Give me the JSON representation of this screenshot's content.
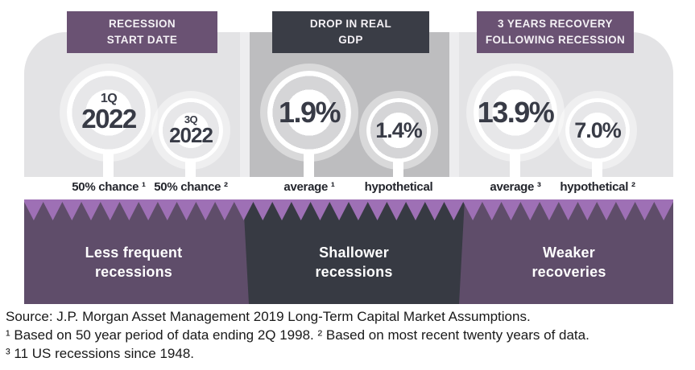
{
  "chart_data": {
    "type": "table",
    "columns": [
      "RECESSION START DATE",
      "DROP IN REAL GDP",
      "3 YEARS RECOVERY FOLLOWING RECESSION"
    ],
    "rows": [
      {
        "group": "RECESSION START DATE",
        "values": [
          {
            "value": "1Q 2022",
            "label": "50% chance ¹"
          },
          {
            "value": "3Q 2022",
            "label": "50% chance ²"
          }
        ],
        "takeaway": "Less frequent recessions"
      },
      {
        "group": "DROP IN REAL GDP",
        "values": [
          {
            "value": "1.9%",
            "label": "average ¹"
          },
          {
            "value": "1.4%",
            "label": "hypothetical"
          }
        ],
        "takeaway": "Shallower recessions"
      },
      {
        "group": "3 YEARS RECOVERY FOLLOWING RECESSION",
        "values": [
          {
            "value": "13.9%",
            "label": "average ³"
          },
          {
            "value": "7.0%",
            "label": "hypothetical ²"
          }
        ],
        "takeaway": "Weaker recoveries"
      }
    ],
    "footnotes": [
      "Source: J.P. Morgan Asset Management 2019 Long-Term Capital Market Assumptions.",
      "¹ Based on 50 year period of data ending 2Q 1998. ² Based on most recent twenty years of data.",
      "³ 11 US recessions since 1948."
    ]
  },
  "columns": [
    {
      "header": "RECESSION\nSTART DATE",
      "items": [
        {
          "value_top": "1Q",
          "value": "2022",
          "label": "50% chance ¹"
        },
        {
          "value_top": "3Q",
          "value": "2022",
          "label": "50% chance ²"
        }
      ],
      "takeaway": "Less frequent\nrecessions"
    },
    {
      "header": "DROP IN REAL\nGDP",
      "items": [
        {
          "value": "1.9%",
          "label": "average ¹"
        },
        {
          "value": "1.4%",
          "label": "hypothetical"
        }
      ],
      "takeaway": "Shallower\nrecessions"
    },
    {
      "header": "3 YEARS RECOVERY\nFOLLOWING RECESSION",
      "items": [
        {
          "value": "13.9%",
          "label": "average ³"
        },
        {
          "value": "7.0%",
          "label": "hypothetical ²"
        }
      ],
      "takeaway": "Weaker\nrecoveries"
    }
  ],
  "footer": {
    "lines": [
      "Source: J.P. Morgan Asset Management 2019 Long-Term Capital Market Assumptions.",
      "¹ Based on 50 year period of data ending 2Q 1998. ² Based on most recent twenty years of data.",
      "³ 11 US recessions since 1948."
    ]
  },
  "colors": {
    "purple_header": "#6a5273",
    "dark_slate": "#3a3d46",
    "panel_light": "#e3e3e5",
    "panel_mid": "#bdbdbf",
    "panel_gap": "#ededef",
    "ring_light": "#e7e7e9",
    "ring_mid": "#d5d5d7",
    "band_purple": "#5f4d6a",
    "band_dark": "#373a43",
    "zigzag_purple": "#9e70b5",
    "number_text": "#383b46",
    "label_text": "#23252c",
    "band_text": "#ffffff",
    "footer_text": "#191919",
    "header_text": "#f4f1f5"
  }
}
